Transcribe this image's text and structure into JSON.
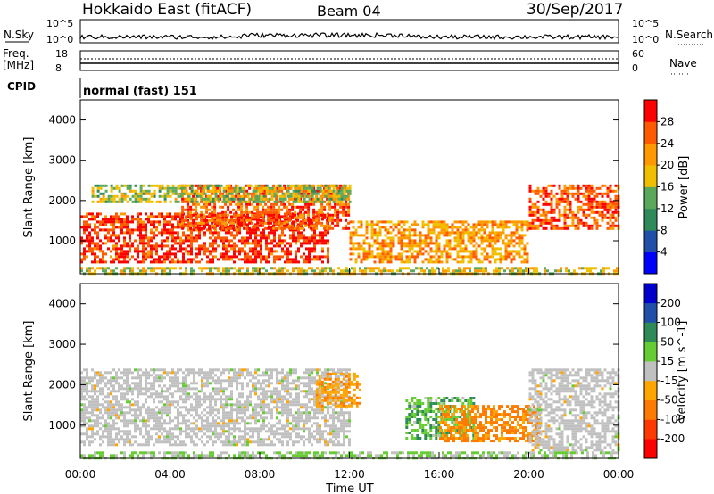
{
  "header": {
    "station": "Hokkaido East (fitACF)",
    "beam": "Beam 04",
    "date": "30/Sep/2017"
  },
  "params": {
    "nsky_label": "N.Sky",
    "nsky_ticks": [
      "10^5",
      "10^0"
    ],
    "nsearch_label": "N.Search",
    "nsearch_ticks": [
      "10^5",
      "10^0"
    ],
    "freq_label_1": "Freq.",
    "freq_label_2": "[MHz]",
    "freq_ticks": [
      "18",
      "8"
    ],
    "nave_label": "Nave",
    "nave_ticks": [
      "60",
      "0"
    ],
    "cpid_label": "CPID",
    "cpid_value": "normal (fast) 151"
  },
  "colors": {
    "power": [
      "#0000ff",
      "#1f4fa6",
      "#2f8a5a",
      "#5aa85a",
      "#f0c000",
      "#ff9900",
      "#ff5a00",
      "#ff0000"
    ],
    "velocity": [
      "#ff0000",
      "#ff3a00",
      "#ff7a00",
      "#ffa500",
      "#c0c0c0",
      "#66cc33",
      "#2e8b57",
      "#1f4fa6",
      "#0000cc"
    ],
    "ground_scatter": "#c0c0c0"
  },
  "chart_data": [
    {
      "type": "heatmap",
      "title": "",
      "ylabel": "Slant Range [km]",
      "xlabel": "",
      "ylim": [
        180,
        4500
      ],
      "x_range_hours": [
        0,
        24
      ],
      "y_ticks": [
        "4000",
        "3000",
        "2000",
        "1000"
      ],
      "colorbar": {
        "label": "Power [dB]",
        "range": [
          0,
          32
        ],
        "tick_labels": [
          "28",
          "24",
          "20",
          "16",
          "12",
          "8",
          "4"
        ]
      },
      "echo_regions": [
        {
          "t_start": 0.0,
          "t_end": 11.0,
          "r_min": 500,
          "r_max": 1700,
          "power_db": 28
        },
        {
          "t_start": 4.5,
          "t_end": 12.0,
          "r_min": 1300,
          "r_max": 2400,
          "power_db": 26
        },
        {
          "t_start": 0.5,
          "t_end": 12.0,
          "r_min": 2000,
          "r_max": 2400,
          "power_db": 16
        },
        {
          "t_start": 12.0,
          "t_end": 20.0,
          "r_min": 500,
          "r_max": 1500,
          "power_db": 22
        },
        {
          "t_start": 20.0,
          "t_end": 24.0,
          "r_min": 1300,
          "r_max": 2400,
          "power_db": 26
        },
        {
          "t_start": 0.0,
          "t_end": 24.0,
          "r_min": 180,
          "r_max": 350,
          "power_db": 18
        }
      ]
    },
    {
      "type": "heatmap",
      "title": "",
      "ylabel": "Slant Range [km]",
      "xlabel": "Time UT",
      "ylim": [
        180,
        4500
      ],
      "x_range_hours": [
        0,
        24
      ],
      "x_ticks": [
        "00:00",
        "04:00",
        "08:00",
        "12:00",
        "16:00",
        "20:00",
        "00:00"
      ],
      "y_ticks": [
        "4000",
        "3000",
        "2000",
        "1000"
      ],
      "colorbar": {
        "label": "Velocity [m s^-1]",
        "range": [
          -250,
          250
        ],
        "tick_labels": [
          "200",
          "100",
          "50",
          "15",
          "-15",
          "-50",
          "-100",
          "-200"
        ]
      },
      "echo_regions": [
        {
          "t_start": 0.0,
          "t_end": 12.0,
          "r_min": 500,
          "r_max": 2400,
          "velocity": 0
        },
        {
          "t_start": 10.5,
          "t_end": 12.5,
          "r_min": 1500,
          "r_max": 2300,
          "velocity": -40
        },
        {
          "t_start": 14.5,
          "t_end": 17.5,
          "r_min": 700,
          "r_max": 1700,
          "velocity": 40
        },
        {
          "t_start": 16.0,
          "t_end": 20.5,
          "r_min": 600,
          "r_max": 1500,
          "velocity": -60
        },
        {
          "t_start": 20.0,
          "t_end": 24.0,
          "r_min": 400,
          "r_max": 2400,
          "velocity": 0
        },
        {
          "t_start": 0.0,
          "t_end": 24.0,
          "r_min": 180,
          "r_max": 350,
          "velocity": 20
        }
      ]
    }
  ]
}
